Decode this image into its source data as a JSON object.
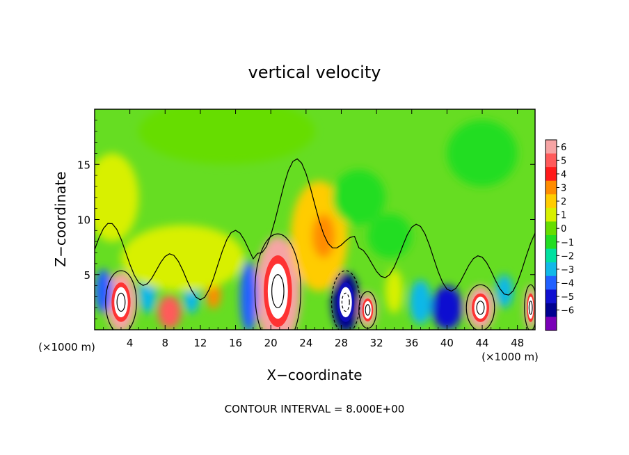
{
  "chart_data": {
    "type": "heatmap",
    "title": "vertical velocity",
    "xlabel": "X−coordinate",
    "ylabel": "Z−coordinate",
    "x_unit_left": "(×1000 m)",
    "x_unit_right": "(×1000 m)",
    "footer": "CONTOUR INTERVAL = 8.000E+00",
    "xlim": [
      0,
      50
    ],
    "ylim": [
      0,
      20
    ],
    "x_ticks": [
      "4",
      "8",
      "12",
      "16",
      "20",
      "24",
      "28",
      "32",
      "36",
      "40",
      "44",
      "48"
    ],
    "y_ticks": [
      "5",
      "10",
      "15"
    ],
    "colorbar": {
      "labels": [
        "6",
        "5",
        "4",
        "3",
        "2",
        "1",
        "0",
        "−1",
        "−2",
        "−3",
        "−4",
        "−5",
        "−6"
      ],
      "colors": [
        "#f6a4a4",
        "#ff5a5a",
        "#ff1a1a",
        "#ff8c00",
        "#ffcc00",
        "#d8f000",
        "#66dd00",
        "#22dd22",
        "#00e0a0",
        "#10b8e8",
        "#2060ff",
        "#1010d0",
        "#000090",
        "#7a00b8"
      ]
    },
    "background_color": "#66dd22",
    "features": [
      {
        "x": 3,
        "z": 2.5,
        "w": 3.5,
        "h": 5.5,
        "value": 6
      },
      {
        "x": 8.5,
        "z": 1.6,
        "w": 2.6,
        "h": 3.0,
        "value": 5
      },
      {
        "x": 13.5,
        "z": 3.2,
        "w": 1.6,
        "h": 2.6,
        "value": 3
      },
      {
        "x": 20.8,
        "z": 3.5,
        "w": 5.2,
        "h": 10.0,
        "value": 6
      },
      {
        "x": 25.5,
        "z": 8.5,
        "w": 6.5,
        "h": 10.0,
        "value": 2
      },
      {
        "x": 26,
        "z": 8.5,
        "w": 2.6,
        "h": 4.0,
        "value": 3
      },
      {
        "x": 28.5,
        "z": 2.5,
        "w": 3.2,
        "h": 5.5,
        "value": -6
      },
      {
        "x": 31,
        "z": 1.8,
        "w": 2.0,
        "h": 3.2,
        "value": 6
      },
      {
        "x": 17.5,
        "z": 3.0,
        "w": 2.0,
        "h": 6.5,
        "value": -4
      },
      {
        "x": 1,
        "z": 3.5,
        "w": 2.0,
        "h": 4.0,
        "value": -4
      },
      {
        "x": 6,
        "z": 3.5,
        "w": 2.0,
        "h": 4.0,
        "value": -3
      },
      {
        "x": 11,
        "z": 3.0,
        "w": 1.8,
        "h": 3.0,
        "value": -3
      },
      {
        "x": 40,
        "z": 2.0,
        "w": 3.5,
        "h": 4.0,
        "value": -5
      },
      {
        "x": 43.8,
        "z": 2.0,
        "w": 3.2,
        "h": 4.0,
        "value": 6
      },
      {
        "x": 49.5,
        "z": 2.0,
        "w": 1.4,
        "h": 4.0,
        "value": 6
      },
      {
        "x": 37,
        "z": 2.5,
        "w": 2.5,
        "h": 4.0,
        "value": -3
      },
      {
        "x": 34,
        "z": 3.5,
        "w": 2.0,
        "h": 4.0,
        "value": 1
      },
      {
        "x": 46.5,
        "z": 3.5,
        "w": 2.0,
        "h": 3.0,
        "value": -3
      },
      {
        "x": 33.5,
        "z": 8.5,
        "w": 5.0,
        "h": 4.0,
        "value": -1
      },
      {
        "x": 30,
        "z": 12.0,
        "w": 6.0,
        "h": 5.0,
        "value": -1
      },
      {
        "x": 10,
        "z": 6.5,
        "w": 14.0,
        "h": 6.0,
        "value": 1
      },
      {
        "x": 44,
        "z": 16.0,
        "w": 8.0,
        "h": 6.0,
        "value": -1
      },
      {
        "x": 2,
        "z": 12.0,
        "w": 6.0,
        "h": 8.0,
        "value": 1
      },
      {
        "x": 15,
        "z": 18.0,
        "w": 20.0,
        "h": 6.0,
        "value": 0
      }
    ]
  }
}
